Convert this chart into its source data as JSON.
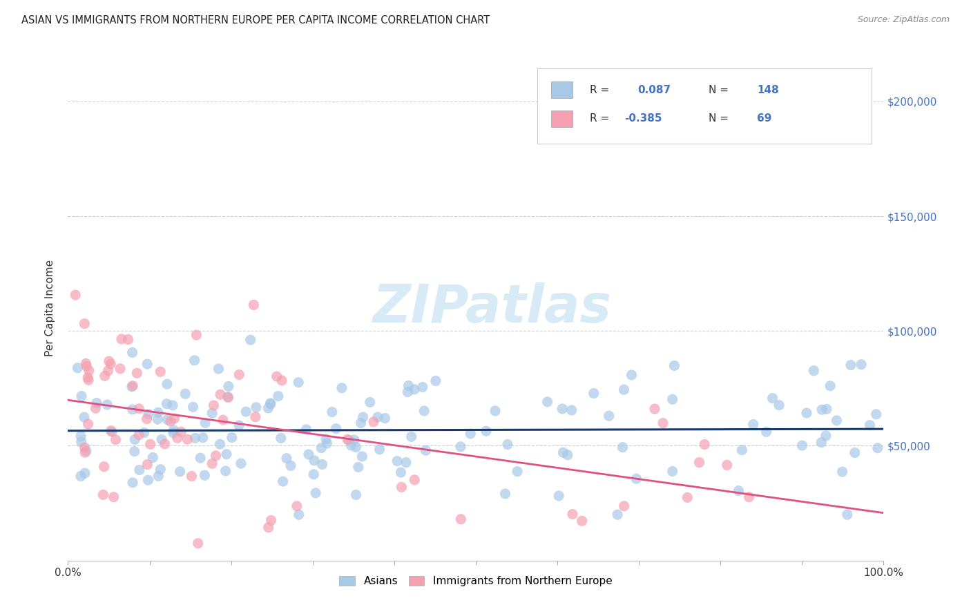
{
  "title": "ASIAN VS IMMIGRANTS FROM NORTHERN EUROPE PER CAPITA INCOME CORRELATION CHART",
  "source": "Source: ZipAtlas.com",
  "ylabel": "Per Capita Income",
  "xlim": [
    0.0,
    1.0
  ],
  "ylim": [
    0,
    220000
  ],
  "blue_R": 0.087,
  "blue_N": 148,
  "pink_R": -0.385,
  "pink_N": 69,
  "blue_color": "#a8c8e8",
  "pink_color": "#f4a0b0",
  "blue_line_color": "#1a3a6b",
  "pink_line_color": "#e05080",
  "legend_label_blue": "Asians",
  "legend_label_pink": "Immigrants from Northern Europe",
  "watermark": "ZIPatlas",
  "background_color": "#ffffff",
  "watermark_color": "#d8eaf5",
  "blue_ytick_color": "#4472c4",
  "grid_color": "#d0d0d0",
  "title_color": "#222222",
  "source_color": "#888888",
  "legend_text_color": "#333333",
  "legend_value_color": "#4472c4"
}
